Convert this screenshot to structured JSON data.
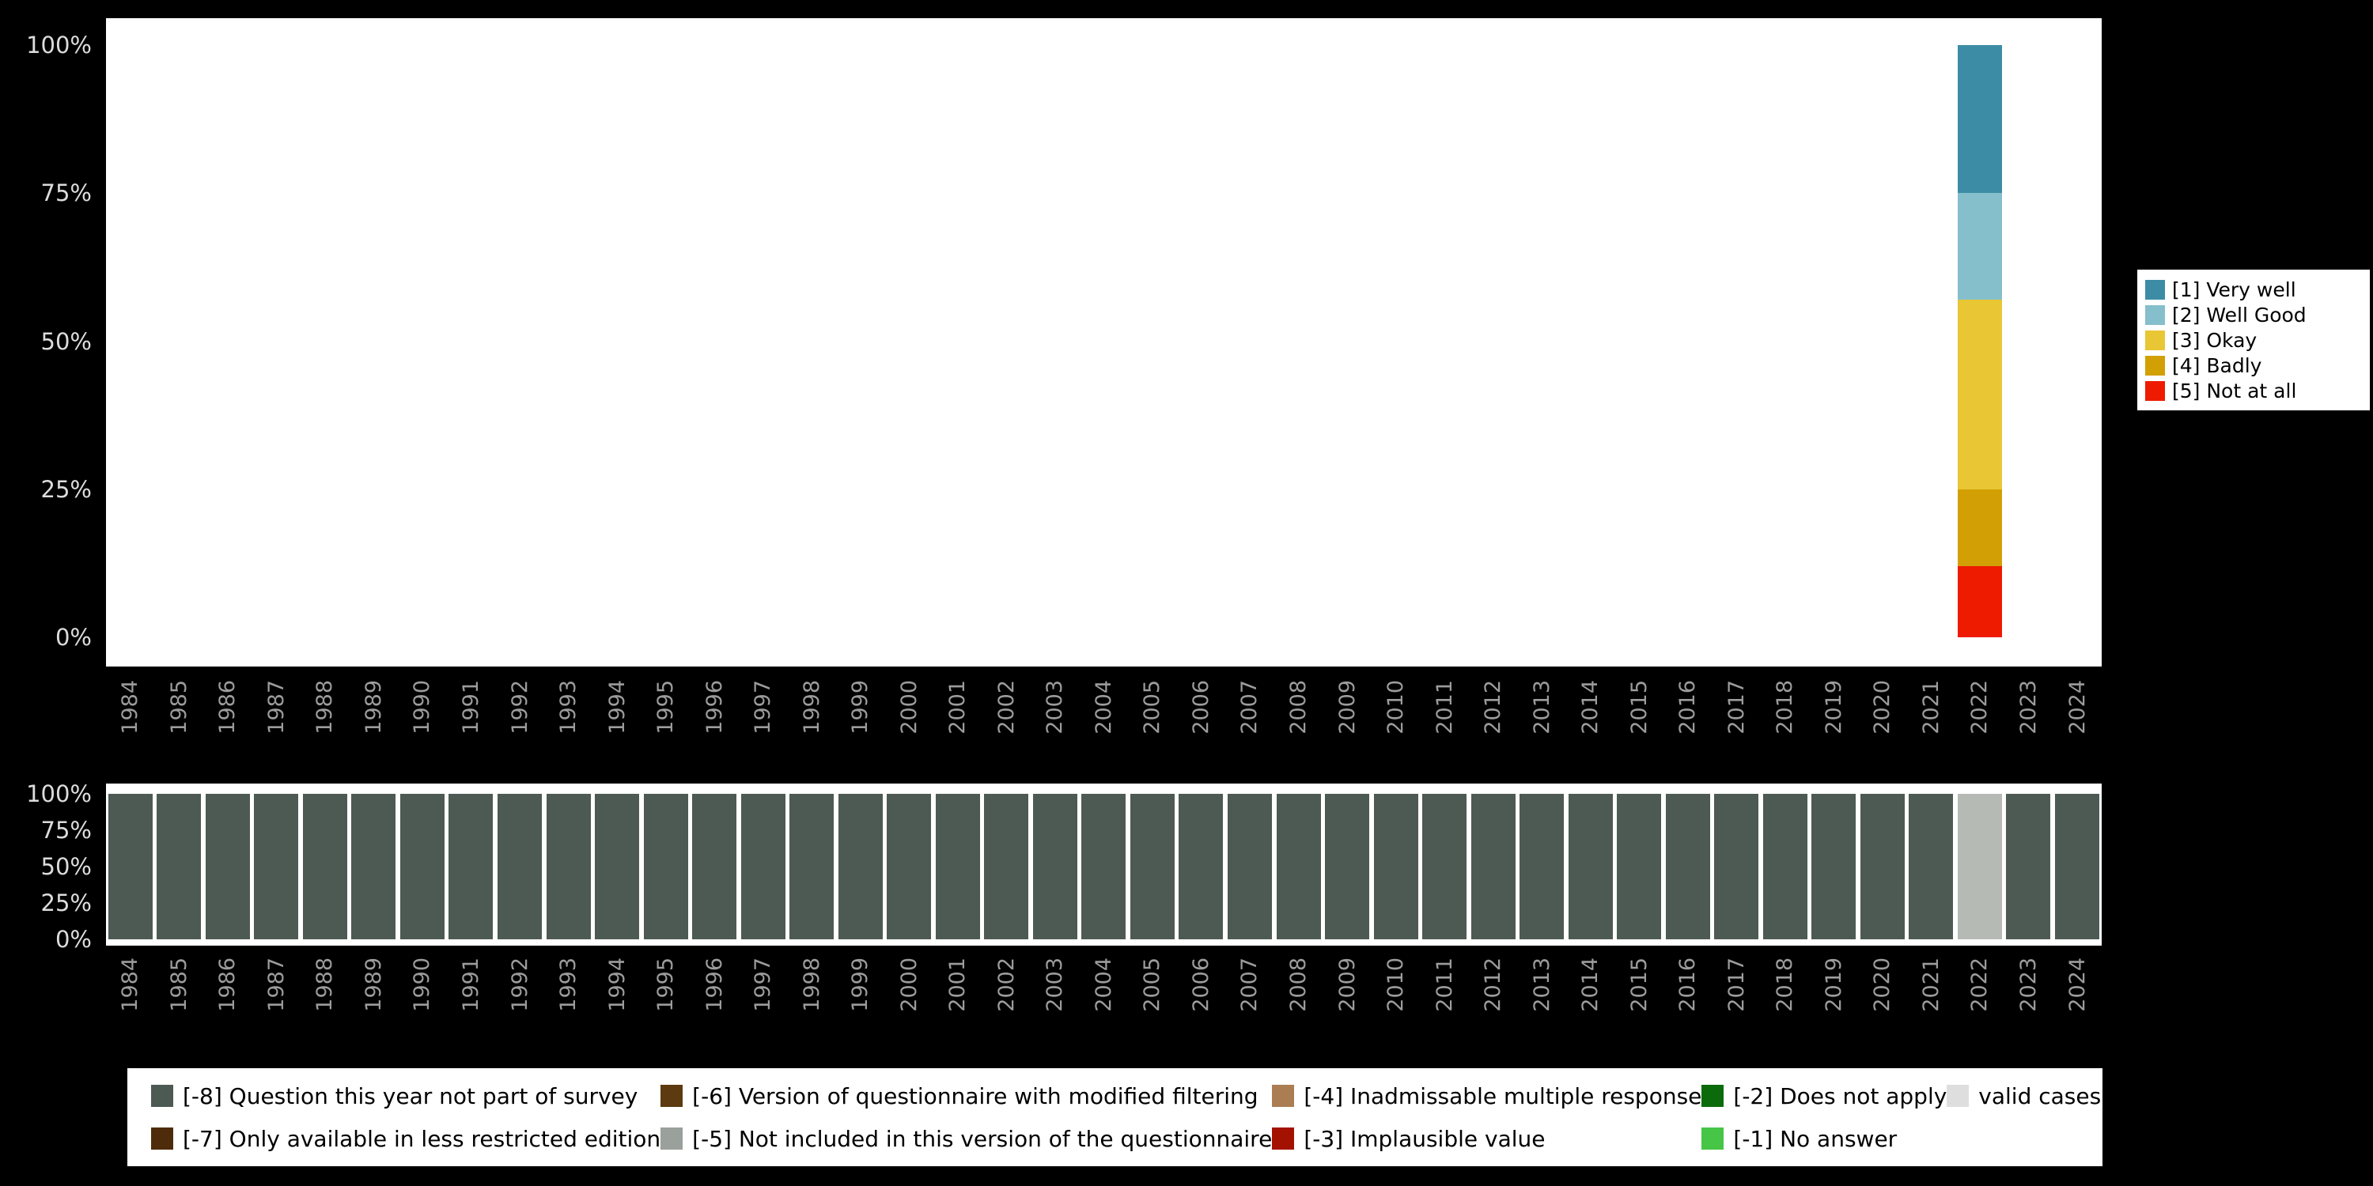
{
  "page": {
    "background": "#000000",
    "plot_background": "#ffffff",
    "ytick_color": "#dcdcdc",
    "year_label_color": "#9c9c9c"
  },
  "chart_data": {
    "shared_x_categories": [
      "1984",
      "1985",
      "1986",
      "1987",
      "1988",
      "1989",
      "1990",
      "1991",
      "1992",
      "1993",
      "1994",
      "1995",
      "1996",
      "1997",
      "1998",
      "1999",
      "2000",
      "2001",
      "2002",
      "2003",
      "2004",
      "2005",
      "2006",
      "2007",
      "2008",
      "2009",
      "2010",
      "2011",
      "2012",
      "2013",
      "2014",
      "2015",
      "2016",
      "2017",
      "2018",
      "2019",
      "2020",
      "2021",
      "2022",
      "2023",
      "2024"
    ],
    "charts": [
      {
        "id": "response-distribution",
        "type": "bar",
        "subtype": "stacked-percent",
        "stack_order": "top-to-bottom",
        "ylim": [
          0,
          100
        ],
        "yticks": [
          "100%",
          "75%",
          "50%",
          "25%",
          "0%"
        ],
        "legend_position": "right",
        "note": "Only 2022 has data; all other years are empty",
        "series": [
          {
            "name": "[1] Very well",
            "color": "#3d8ca6",
            "default": 0,
            "values": {
              "2022": 25
            }
          },
          {
            "name": "[2] Well Good",
            "color": "#85bfcb",
            "default": 0,
            "values": {
              "2022": 18
            }
          },
          {
            "name": "[3] Okay",
            "color": "#e9c634",
            "default": 0,
            "values": {
              "2022": 32
            }
          },
          {
            "name": "[4] Badly",
            "color": "#d2a004",
            "default": 0,
            "values": {
              "2022": 13
            }
          },
          {
            "name": "[5] Not at all",
            "color": "#ee1b00",
            "default": 0,
            "values": {
              "2022": 12
            }
          }
        ]
      },
      {
        "id": "missing-values",
        "type": "bar",
        "subtype": "stacked-percent",
        "stack_order": "top-to-bottom",
        "ylim": [
          0,
          100
        ],
        "yticks": [
          "100%",
          "75%",
          "50%",
          "25%",
          "0%"
        ],
        "series": [
          {
            "name": "[-8] Question this year not part of survey",
            "color": "#4d5a53",
            "default": 100,
            "values": {
              "2022": 0
            }
          },
          {
            "name": "valid cases",
            "color": "#b5bab5",
            "default": 0,
            "values": {
              "2022": 100
            }
          }
        ]
      }
    ]
  },
  "missing_legend": {
    "items": [
      {
        "label": "[-8] Question this year not part of survey",
        "color": "#4d5a53"
      },
      {
        "label": "[-7] Only available in less restricted edition",
        "color": "#4e2c0b"
      },
      {
        "label": "[-6] Version of questionnaire with modified filtering",
        "color": "#5e3a10"
      },
      {
        "label": "[-5] Not included in this version of the questionnaire",
        "color": "#9aa09b"
      },
      {
        "label": "[-4] Inadmissable multiple response",
        "color": "#aa7e52"
      },
      {
        "label": "[-3] Implausible value",
        "color": "#a31200"
      },
      {
        "label": "[-2] Does not apply",
        "color": "#0b6b0b"
      },
      {
        "label": "[-1] No answer",
        "color": "#46c546"
      },
      {
        "label": "valid cases",
        "color": "#dedede"
      }
    ]
  }
}
